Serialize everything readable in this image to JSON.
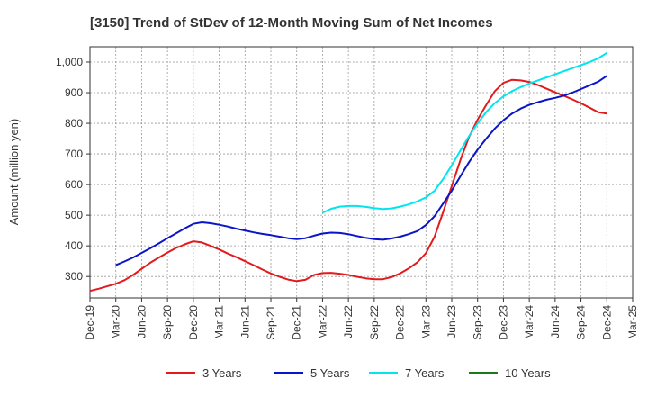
{
  "chart_data": {
    "type": "line",
    "title": "[3150]  Trend of StDev of 12-Month Moving Sum of Net Incomes",
    "xlabel": "",
    "ylabel": "Amount (million yen)",
    "ylim": [
      230,
      1050
    ],
    "yticks": [
      300,
      400,
      500,
      600,
      700,
      800,
      900,
      1000
    ],
    "ytick_labels": [
      "300",
      "400",
      "500",
      "600",
      "700",
      "800",
      "900",
      "1,000"
    ],
    "xticks": [
      "Dec-19",
      "Mar-20",
      "Jun-20",
      "Sep-20",
      "Dec-20",
      "Mar-21",
      "Jun-21",
      "Sep-21",
      "Dec-21",
      "Mar-22",
      "Jun-22",
      "Sep-22",
      "Dec-22",
      "Mar-23",
      "Jun-23",
      "Sep-23",
      "Dec-23",
      "Mar-24",
      "Jun-24",
      "Sep-24",
      "Dec-24",
      "Mar-25"
    ],
    "grid": true,
    "legend_position": "bottom",
    "series": [
      {
        "name": "3 Years",
        "color": "#e31a1c",
        "x": [
          "Dec-19",
          "Jan-20",
          "Feb-20",
          "Mar-20",
          "Apr-20",
          "May-20",
          "Jun-20",
          "Jul-20",
          "Aug-20",
          "Sep-20",
          "Oct-20",
          "Nov-20",
          "Dec-20",
          "Jan-21",
          "Feb-21",
          "Mar-21",
          "Apr-21",
          "May-21",
          "Jun-21",
          "Jul-21",
          "Aug-21",
          "Sep-21",
          "Oct-21",
          "Nov-21",
          "Dec-21",
          "Jan-22",
          "Feb-22",
          "Mar-22",
          "Apr-22",
          "May-22",
          "Jun-22",
          "Jul-22",
          "Aug-22",
          "Sep-22",
          "Oct-22",
          "Nov-22",
          "Dec-22",
          "Jan-23",
          "Feb-23",
          "Mar-23",
          "Apr-23",
          "May-23",
          "Jun-23",
          "Jul-23",
          "Aug-23",
          "Sep-23",
          "Oct-23",
          "Nov-23",
          "Dec-23",
          "Jan-24",
          "Feb-24",
          "Mar-24",
          "Apr-24",
          "May-24",
          "Jun-24",
          "Jul-24",
          "Aug-24",
          "Sep-24",
          "Oct-24",
          "Nov-24",
          "Dec-24"
        ],
        "values": [
          253,
          260,
          268,
          276,
          288,
          305,
          325,
          345,
          362,
          378,
          393,
          405,
          415,
          411,
          400,
          388,
          375,
          363,
          350,
          337,
          323,
          310,
          299,
          290,
          285,
          289,
          305,
          311,
          312,
          309,
          305,
          299,
          294,
          291,
          291,
          298,
          310,
          326,
          346,
          376,
          430,
          510,
          595,
          680,
          755,
          812,
          860,
          905,
          932,
          942,
          940,
          935,
          925,
          913,
          901,
          890,
          878,
          865,
          851,
          836,
          832
        ]
      },
      {
        "name": "5 Years",
        "color": "#0a14c8",
        "x": [
          "Mar-20",
          "Apr-20",
          "May-20",
          "Jun-20",
          "Jul-20",
          "Aug-20",
          "Sep-20",
          "Oct-20",
          "Nov-20",
          "Dec-20",
          "Jan-21",
          "Feb-21",
          "Mar-21",
          "Apr-21",
          "May-21",
          "Jun-21",
          "Jul-21",
          "Aug-21",
          "Sep-21",
          "Oct-21",
          "Nov-21",
          "Dec-21",
          "Jan-22",
          "Feb-22",
          "Mar-22",
          "Apr-22",
          "May-22",
          "Jun-22",
          "Jul-22",
          "Aug-22",
          "Sep-22",
          "Oct-22",
          "Nov-22",
          "Dec-22",
          "Jan-23",
          "Feb-23",
          "Mar-23",
          "Apr-23",
          "May-23",
          "Jun-23",
          "Jul-23",
          "Aug-23",
          "Sep-23",
          "Oct-23",
          "Nov-23",
          "Dec-23",
          "Jan-24",
          "Feb-24",
          "Mar-24",
          "Apr-24",
          "May-24",
          "Jun-24",
          "Jul-24",
          "Aug-24",
          "Sep-24",
          "Oct-24",
          "Nov-24",
          "Dec-24"
        ],
        "values": [
          337,
          349,
          362,
          377,
          392,
          408,
          425,
          441,
          457,
          472,
          477,
          474,
          469,
          463,
          456,
          450,
          444,
          439,
          435,
          430,
          425,
          422,
          425,
          433,
          440,
          443,
          442,
          438,
          432,
          426,
          422,
          420,
          424,
          430,
          438,
          448,
          468,
          497,
          538,
          580,
          627,
          673,
          714,
          750,
          783,
          810,
          832,
          848,
          860,
          869,
          877,
          883,
          890,
          900,
          912,
          924,
          936,
          955
        ]
      },
      {
        "name": "7 Years",
        "color": "#00e5ee",
        "x": [
          "Mar-22",
          "Apr-22",
          "May-22",
          "Jun-22",
          "Jul-22",
          "Aug-22",
          "Sep-22",
          "Oct-22",
          "Nov-22",
          "Dec-22",
          "Jan-23",
          "Feb-23",
          "Mar-23",
          "Apr-23",
          "May-23",
          "Jun-23",
          "Jul-23",
          "Aug-23",
          "Sep-23",
          "Oct-23",
          "Nov-23",
          "Dec-23",
          "Jan-24",
          "Feb-24",
          "Mar-24",
          "Apr-24",
          "May-24",
          "Jun-24",
          "Jul-24",
          "Aug-24",
          "Sep-24",
          "Oct-24",
          "Nov-24",
          "Dec-24"
        ],
        "values": [
          508,
          521,
          528,
          530,
          530,
          527,
          523,
          520,
          522,
          528,
          535,
          545,
          558,
          580,
          618,
          663,
          711,
          758,
          800,
          837,
          866,
          888,
          905,
          918,
          930,
          940,
          950,
          960,
          970,
          980,
          990,
          1000,
          1012,
          1030
        ]
      },
      {
        "name": "10 Years",
        "color": "#1a7a1a",
        "x": [],
        "values": []
      }
    ]
  }
}
